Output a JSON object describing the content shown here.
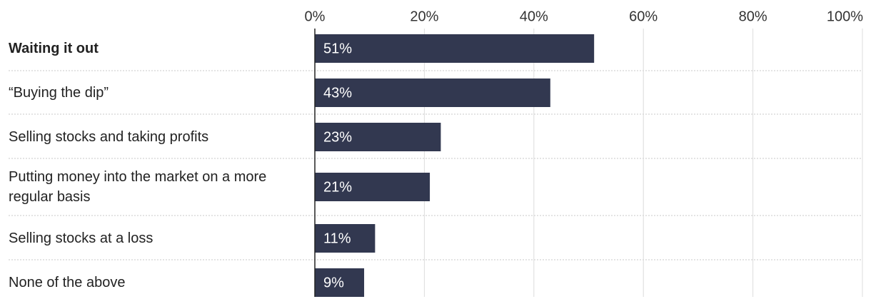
{
  "chart_data": {
    "type": "bar",
    "orientation": "horizontal",
    "categories": [
      "Waiting it out",
      "“Buying the dip”",
      "Selling stocks and taking profits",
      "Putting money into the market on a more regular basis",
      "Selling stocks at a loss",
      "None of the above"
    ],
    "values": [
      51,
      43,
      23,
      21,
      11,
      9
    ],
    "value_labels": [
      "51%",
      "43%",
      "23%",
      "21%",
      "11%",
      "9%"
    ],
    "color": "#323850",
    "xlim": [
      0,
      100
    ],
    "xticks": [
      {
        "value": 0,
        "label": "0%"
      },
      {
        "value": 20,
        "label": "20%"
      },
      {
        "value": 40,
        "label": "40%"
      },
      {
        "value": 60,
        "label": "60%"
      },
      {
        "value": 80,
        "label": "80%"
      },
      {
        "value": 100,
        "label": "100%"
      }
    ],
    "grid": true
  }
}
